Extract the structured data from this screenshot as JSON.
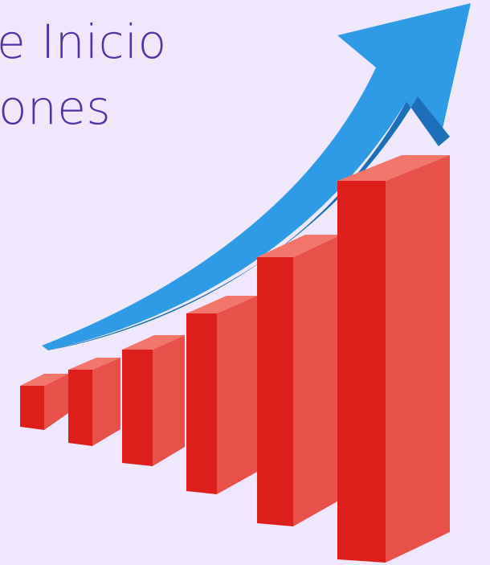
{
  "header": {
    "lines": [
      "e Inicio",
      "ones"
    ]
  }
}
